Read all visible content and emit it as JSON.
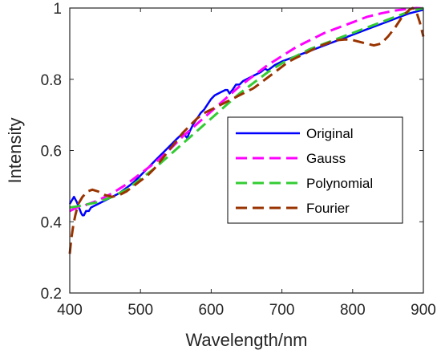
{
  "chart_data": {
    "type": "line",
    "xlabel": "Wavelength/nm",
    "ylabel": "Intensity",
    "xlim": [
      400,
      900
    ],
    "ylim": [
      0.2,
      1
    ],
    "xticks": [
      400,
      500,
      600,
      700,
      800,
      900
    ],
    "yticks": [
      0.2,
      0.4,
      0.6,
      0.8,
      1
    ],
    "xtick_labels": [
      "400",
      "500",
      "600",
      "700",
      "800",
      "900"
    ],
    "ytick_labels": [
      "0.2",
      "0.4",
      "0.6",
      "0.8",
      "1"
    ],
    "grid": false,
    "legend_position": "lower-right",
    "series": [
      {
        "name": "Original",
        "color": "#0000ff",
        "style": "solid",
        "points": [
          [
            400,
            0.45
          ],
          [
            403,
            0.46
          ],
          [
            406,
            0.47
          ],
          [
            410,
            0.455
          ],
          [
            413,
            0.44
          ],
          [
            416,
            0.425
          ],
          [
            418,
            0.418
          ],
          [
            420,
            0.418
          ],
          [
            423,
            0.43
          ],
          [
            427,
            0.43
          ],
          [
            430,
            0.44
          ],
          [
            435,
            0.445
          ],
          [
            440,
            0.45
          ],
          [
            450,
            0.46
          ],
          [
            460,
            0.47
          ],
          [
            470,
            0.48
          ],
          [
            480,
            0.495
          ],
          [
            490,
            0.51
          ],
          [
            500,
            0.53
          ],
          [
            510,
            0.55
          ],
          [
            520,
            0.57
          ],
          [
            530,
            0.59
          ],
          [
            540,
            0.61
          ],
          [
            550,
            0.63
          ],
          [
            558,
            0.645
          ],
          [
            562,
            0.645
          ],
          [
            566,
            0.635
          ],
          [
            570,
            0.655
          ],
          [
            575,
            0.675
          ],
          [
            580,
            0.69
          ],
          [
            585,
            0.705
          ],
          [
            590,
            0.715
          ],
          [
            595,
            0.73
          ],
          [
            600,
            0.745
          ],
          [
            605,
            0.755
          ],
          [
            610,
            0.76
          ],
          [
            615,
            0.765
          ],
          [
            620,
            0.77
          ],
          [
            623,
            0.77
          ],
          [
            626,
            0.76
          ],
          [
            630,
            0.77
          ],
          [
            635,
            0.785
          ],
          [
            640,
            0.785
          ],
          [
            645,
            0.795
          ],
          [
            650,
            0.8
          ],
          [
            660,
            0.81
          ],
          [
            670,
            0.82
          ],
          [
            676,
            0.83
          ],
          [
            680,
            0.825
          ],
          [
            690,
            0.84
          ],
          [
            700,
            0.85
          ],
          [
            720,
            0.865
          ],
          [
            740,
            0.88
          ],
          [
            760,
            0.895
          ],
          [
            780,
            0.91
          ],
          [
            800,
            0.925
          ],
          [
            820,
            0.94
          ],
          [
            840,
            0.955
          ],
          [
            860,
            0.97
          ],
          [
            880,
            0.985
          ],
          [
            900,
            0.995
          ]
        ]
      },
      {
        "name": "Gauss",
        "color": "#ff00ff",
        "style": "dashed",
        "points": [
          [
            400,
            0.43
          ],
          [
            410,
            0.44
          ],
          [
            420,
            0.445
          ],
          [
            440,
            0.46
          ],
          [
            460,
            0.48
          ],
          [
            480,
            0.505
          ],
          [
            500,
            0.535
          ],
          [
            520,
            0.565
          ],
          [
            540,
            0.6
          ],
          [
            560,
            0.64
          ],
          [
            580,
            0.675
          ],
          [
            600,
            0.71
          ],
          [
            620,
            0.745
          ],
          [
            640,
            0.78
          ],
          [
            660,
            0.81
          ],
          [
            680,
            0.84
          ],
          [
            700,
            0.865
          ],
          [
            720,
            0.89
          ],
          [
            740,
            0.91
          ],
          [
            760,
            0.93
          ],
          [
            780,
            0.945
          ],
          [
            800,
            0.96
          ],
          [
            820,
            0.975
          ],
          [
            840,
            0.985
          ],
          [
            860,
            0.993
          ],
          [
            880,
            0.998
          ],
          [
            890,
            1.0
          ],
          [
            900,
            0.999
          ]
        ]
      },
      {
        "name": "Polynomial",
        "color": "#33cc33",
        "style": "dashed",
        "points": [
          [
            400,
            0.44
          ],
          [
            410,
            0.443
          ],
          [
            420,
            0.447
          ],
          [
            440,
            0.455
          ],
          [
            460,
            0.47
          ],
          [
            480,
            0.49
          ],
          [
            500,
            0.52
          ],
          [
            520,
            0.55
          ],
          [
            540,
            0.585
          ],
          [
            560,
            0.62
          ],
          [
            580,
            0.655
          ],
          [
            600,
            0.69
          ],
          [
            620,
            0.725
          ],
          [
            640,
            0.76
          ],
          [
            660,
            0.79
          ],
          [
            680,
            0.82
          ],
          [
            700,
            0.845
          ],
          [
            720,
            0.865
          ],
          [
            740,
            0.885
          ],
          [
            760,
            0.9
          ],
          [
            780,
            0.915
          ],
          [
            800,
            0.93
          ],
          [
            820,
            0.945
          ],
          [
            840,
            0.96
          ],
          [
            860,
            0.975
          ],
          [
            880,
            0.99
          ],
          [
            900,
            1.0
          ]
        ]
      },
      {
        "name": "Fourier",
        "color": "#993300",
        "style": "dashed",
        "points": [
          [
            400,
            0.31
          ],
          [
            402,
            0.35
          ],
          [
            405,
            0.39
          ],
          [
            408,
            0.42
          ],
          [
            412,
            0.45
          ],
          [
            418,
            0.47
          ],
          [
            425,
            0.485
          ],
          [
            432,
            0.49
          ],
          [
            440,
            0.485
          ],
          [
            450,
            0.475
          ],
          [
            460,
            0.47
          ],
          [
            470,
            0.475
          ],
          [
            480,
            0.485
          ],
          [
            490,
            0.5
          ],
          [
            500,
            0.515
          ],
          [
            510,
            0.53
          ],
          [
            520,
            0.55
          ],
          [
            530,
            0.575
          ],
          [
            540,
            0.6
          ],
          [
            550,
            0.625
          ],
          [
            560,
            0.65
          ],
          [
            570,
            0.67
          ],
          [
            580,
            0.69
          ],
          [
            590,
            0.705
          ],
          [
            600,
            0.715
          ],
          [
            610,
            0.725
          ],
          [
            620,
            0.735
          ],
          [
            630,
            0.745
          ],
          [
            640,
            0.755
          ],
          [
            650,
            0.765
          ],
          [
            660,
            0.775
          ],
          [
            670,
            0.79
          ],
          [
            680,
            0.805
          ],
          [
            690,
            0.82
          ],
          [
            700,
            0.835
          ],
          [
            710,
            0.85
          ],
          [
            720,
            0.86
          ],
          [
            730,
            0.87
          ],
          [
            740,
            0.88
          ],
          [
            750,
            0.89
          ],
          [
            760,
            0.898
          ],
          [
            770,
            0.905
          ],
          [
            780,
            0.91
          ],
          [
            790,
            0.912
          ],
          [
            800,
            0.91
          ],
          [
            810,
            0.905
          ],
          [
            820,
            0.9
          ],
          [
            830,
            0.895
          ],
          [
            840,
            0.9
          ],
          [
            850,
            0.92
          ],
          [
            860,
            0.945
          ],
          [
            870,
            0.975
          ],
          [
            880,
            0.995
          ],
          [
            885,
            1.0
          ],
          [
            890,
            0.99
          ],
          [
            895,
            0.96
          ],
          [
            900,
            0.92
          ]
        ]
      }
    ]
  }
}
